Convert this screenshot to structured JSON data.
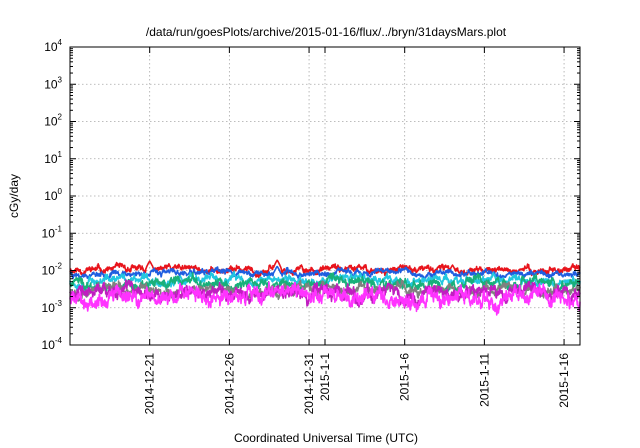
{
  "chart_data": {
    "type": "line",
    "title": "/data/run/goesPlots/archive/2015-01-16/flux/../bryn/31daysMars.plot",
    "xlabel": "Coordinated Universal Time (UTC)",
    "ylabel": "cGy/day",
    "yscale": "log",
    "ylim": [
      0.0001,
      10000
    ],
    "y_ticks": [
      {
        "base": "10",
        "exp": "-4"
      },
      {
        "base": "10",
        "exp": "-3"
      },
      {
        "base": "10",
        "exp": "-2"
      },
      {
        "base": "10",
        "exp": "-1"
      },
      {
        "base": "10",
        "exp": "0"
      },
      {
        "base": "10",
        "exp": "1"
      },
      {
        "base": "10",
        "exp": "2"
      },
      {
        "base": "10",
        "exp": "3"
      },
      {
        "base": "10",
        "exp": "4"
      }
    ],
    "xlim": [
      "2014-12-16",
      "2015-01-17"
    ],
    "x_ticks": [
      {
        "label": "2014-12-21",
        "date": "2014-12-21"
      },
      {
        "label": "2014-12-26",
        "date": "2014-12-26"
      },
      {
        "label": "2014-12-31",
        "date": "2014-12-31"
      },
      {
        "label": "2015-1-1",
        "date": "2015-01-01"
      },
      {
        "label": "2015-1-6",
        "date": "2015-01-06"
      },
      {
        "label": "2015-1-11",
        "date": "2015-01-11"
      },
      {
        "label": "2015-1-16",
        "date": "2015-01-16"
      }
    ],
    "grid": true,
    "series": [
      {
        "color": "#e8141c",
        "base": 0.0105,
        "amp": 0.14,
        "seed": 11,
        "spikes": [
          [
            "2014-12-21",
            0.018
          ],
          [
            "2014-12-29",
            0.019
          ],
          [
            "2015-01-09",
            0.014
          ]
        ]
      },
      {
        "color": "#1f5ee0",
        "base": 0.0085,
        "amp": 0.12,
        "seed": 23,
        "spikes": [
          [
            "2014-12-29",
            0.013
          ]
        ]
      },
      {
        "color": "#22c7e0",
        "base": 0.0055,
        "amp": 0.18,
        "seed": 37,
        "spikes": []
      },
      {
        "color": "#18b07a",
        "base": 0.0042,
        "amp": 0.2,
        "seed": 41,
        "spikes": []
      },
      {
        "color": "#808080",
        "base": 0.003,
        "amp": 0.2,
        "seed": 53,
        "spikes": []
      },
      {
        "color": "#c01ec0",
        "base": 0.0024,
        "amp": 0.28,
        "seed": 61,
        "spikes": []
      },
      {
        "color": "#ff33ff",
        "base": 0.0019,
        "amp": 0.34,
        "seed": 79,
        "spikes": [
          [
            "2014-12-29",
            0.0032
          ]
        ]
      }
    ]
  }
}
